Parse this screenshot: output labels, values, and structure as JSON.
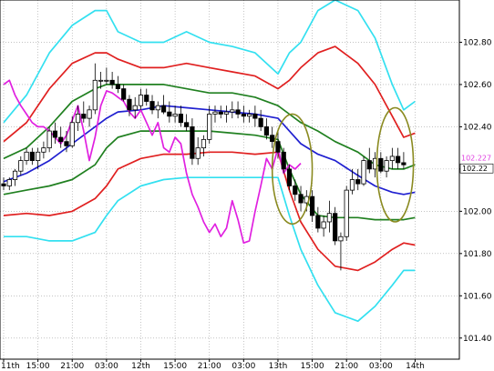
{
  "chart_data": {
    "type": "line",
    "title": "",
    "xlabel": "",
    "ylabel": "",
    "ylim": [
      101.3,
      103.0
    ],
    "y_ticks": [
      "102.80",
      "102.60",
      "102.40",
      "102.20",
      "102.00",
      "101.80",
      "101.60",
      "101.40"
    ],
    "y_tick_values": [
      102.8,
      102.6,
      102.4,
      102.2,
      102.0,
      101.8,
      101.6,
      101.4
    ],
    "x_range": [
      0,
      92
    ],
    "x_ticks": [
      {
        "label": "11th",
        "x": 0
      },
      {
        "label": "15:00",
        "x": 6
      },
      {
        "label": "21:00",
        "x": 12
      },
      {
        "label": "03:00",
        "x": 18
      },
      {
        "label": "12th",
        "x": 24
      },
      {
        "label": "15:00",
        "x": 30
      },
      {
        "label": "21:00",
        "x": 36
      },
      {
        "label": "03:00",
        "x": 42
      },
      {
        "label": "13th",
        "x": 48
      },
      {
        "label": "15:00",
        "x": 54
      },
      {
        "label": "21:00",
        "x": 60
      },
      {
        "label": "03:00",
        "x": 66
      },
      {
        "label": "14th",
        "x": 72
      }
    ],
    "grid": true,
    "current_price_labels": [
      {
        "text": "102.227",
        "value": 102.227,
        "color": "#e040e0"
      },
      {
        "text": "102.22",
        "value": 102.22,
        "color": "#000000"
      }
    ],
    "colors": {
      "outer_band": "#33e0f0",
      "middle_band": "#e02020",
      "inner_band": "#208020",
      "moving_average": "#2020d0",
      "lagging_line": "#e020e0",
      "candle_up": "#ffffff",
      "candle_down": "#000000",
      "circle": "#8a8a20"
    },
    "series": [
      {
        "key": "outer_upper",
        "x": [
          0,
          4,
          8,
          12,
          16,
          18,
          20,
          24,
          28,
          32,
          36,
          40,
          44,
          48,
          50,
          52,
          55,
          58,
          62,
          65,
          68,
          70,
          72
        ],
        "values": [
          102.42,
          102.55,
          102.75,
          102.88,
          102.95,
          102.95,
          102.85,
          102.8,
          102.8,
          102.85,
          102.8,
          102.78,
          102.75,
          102.65,
          102.75,
          102.8,
          102.95,
          103.0,
          102.95,
          102.82,
          102.6,
          102.48,
          102.52
        ]
      },
      {
        "key": "middle_upper",
        "x": [
          0,
          4,
          8,
          12,
          16,
          18,
          20,
          24,
          28,
          32,
          36,
          40,
          44,
          48,
          50,
          52,
          55,
          58,
          62,
          65,
          68,
          70,
          72
        ],
        "values": [
          102.33,
          102.42,
          102.58,
          102.7,
          102.75,
          102.75,
          102.72,
          102.68,
          102.68,
          102.7,
          102.68,
          102.66,
          102.64,
          102.58,
          102.62,
          102.68,
          102.75,
          102.78,
          102.7,
          102.6,
          102.45,
          102.35,
          102.37
        ]
      },
      {
        "key": "inner_upper",
        "x": [
          0,
          4,
          8,
          12,
          16,
          18,
          20,
          24,
          28,
          32,
          36,
          40,
          44,
          48,
          50,
          52,
          55,
          58,
          62,
          65,
          68,
          70,
          72
        ],
        "values": [
          102.25,
          102.3,
          102.4,
          102.52,
          102.58,
          102.6,
          102.6,
          102.6,
          102.6,
          102.58,
          102.56,
          102.56,
          102.54,
          102.5,
          102.46,
          102.42,
          102.38,
          102.33,
          102.28,
          102.22,
          102.2,
          102.2,
          102.22
        ]
      },
      {
        "key": "moving_average",
        "x": [
          0,
          4,
          8,
          12,
          16,
          18,
          20,
          24,
          28,
          32,
          36,
          40,
          44,
          48,
          50,
          52,
          55,
          58,
          62,
          65,
          68,
          70,
          72
        ],
        "values": [
          102.14,
          102.18,
          102.24,
          102.32,
          102.4,
          102.44,
          102.47,
          102.48,
          102.5,
          102.49,
          102.48,
          102.47,
          102.46,
          102.44,
          102.38,
          102.32,
          102.27,
          102.24,
          102.17,
          102.12,
          102.09,
          102.08,
          102.09
        ]
      },
      {
        "key": "inner_lower",
        "x": [
          0,
          4,
          8,
          12,
          16,
          18,
          20,
          24,
          28,
          32,
          36,
          40,
          44,
          48,
          50,
          52,
          55,
          58,
          62,
          65,
          68,
          70,
          72
        ],
        "values": [
          102.08,
          102.1,
          102.12,
          102.15,
          102.22,
          102.3,
          102.35,
          102.38,
          102.38,
          102.38,
          102.38,
          102.37,
          102.36,
          102.34,
          102.2,
          102.08,
          101.98,
          101.97,
          101.97,
          101.96,
          101.96,
          101.96,
          101.97
        ]
      },
      {
        "key": "middle_lower",
        "x": [
          0,
          4,
          8,
          12,
          16,
          18,
          20,
          24,
          28,
          32,
          36,
          40,
          44,
          48,
          50,
          52,
          55,
          58,
          62,
          65,
          68,
          70,
          72
        ],
        "values": [
          101.98,
          101.99,
          101.98,
          102.0,
          102.06,
          102.12,
          102.2,
          102.25,
          102.27,
          102.27,
          102.28,
          102.28,
          102.27,
          102.28,
          102.1,
          101.95,
          101.82,
          101.74,
          101.72,
          101.76,
          101.82,
          101.85,
          101.84
        ]
      },
      {
        "key": "outer_lower",
        "x": [
          0,
          4,
          8,
          12,
          16,
          18,
          20,
          24,
          28,
          32,
          36,
          40,
          44,
          48,
          50,
          52,
          55,
          58,
          62,
          65,
          68,
          70,
          72
        ],
        "values": [
          101.88,
          101.88,
          101.86,
          101.86,
          101.9,
          101.98,
          102.05,
          102.12,
          102.15,
          102.16,
          102.16,
          102.16,
          102.16,
          102.16,
          101.98,
          101.82,
          101.65,
          101.52,
          101.48,
          101.55,
          101.65,
          101.72,
          101.72
        ]
      },
      {
        "key": "lagging_line",
        "x": [
          0,
          1,
          2,
          3,
          4,
          5,
          6,
          7,
          8,
          9,
          10,
          11,
          12,
          13,
          14,
          15,
          16,
          17,
          18,
          19,
          20,
          21,
          22,
          23,
          24,
          25,
          26,
          27,
          28,
          29,
          30,
          31,
          32,
          33,
          34,
          35,
          36,
          37,
          38,
          39,
          40,
          41,
          42,
          43,
          44,
          45,
          46,
          47,
          48,
          49,
          50,
          51,
          52
        ],
        "values": [
          102.6,
          102.62,
          102.55,
          102.5,
          102.46,
          102.42,
          102.4,
          102.4,
          102.38,
          102.35,
          102.32,
          102.36,
          102.43,
          102.5,
          102.38,
          102.24,
          102.35,
          102.5,
          102.57,
          102.56,
          102.54,
          102.52,
          102.47,
          102.44,
          102.48,
          102.42,
          102.36,
          102.42,
          102.3,
          102.28,
          102.35,
          102.32,
          102.18,
          102.08,
          102.02,
          101.95,
          101.9,
          101.94,
          101.88,
          101.92,
          102.05,
          101.96,
          101.85,
          101.86,
          102.0,
          102.12,
          102.25,
          102.2,
          102.3,
          102.18,
          102.22,
          102.2,
          102.227
        ]
      }
    ],
    "candles": [
      [
        102.13,
        102.16,
        102.1,
        102.12
      ],
      [
        102.12,
        102.16,
        102.1,
        102.15
      ],
      [
        102.15,
        102.2,
        102.12,
        102.19
      ],
      [
        102.19,
        102.26,
        102.17,
        102.24
      ],
      [
        102.24,
        102.3,
        102.22,
        102.28
      ],
      [
        102.28,
        102.3,
        102.22,
        102.24
      ],
      [
        102.24,
        102.3,
        102.2,
        102.28
      ],
      [
        102.28,
        102.33,
        102.25,
        102.3
      ],
      [
        102.3,
        102.4,
        102.28,
        102.38
      ],
      [
        102.38,
        102.42,
        102.32,
        102.35
      ],
      [
        102.35,
        102.4,
        102.3,
        102.33
      ],
      [
        102.33,
        102.38,
        102.28,
        102.31
      ],
      [
        102.31,
        102.45,
        102.3,
        102.42
      ],
      [
        102.42,
        102.5,
        102.38,
        102.46
      ],
      [
        102.46,
        102.52,
        102.42,
        102.44
      ],
      [
        102.44,
        102.5,
        102.4,
        102.48
      ],
      [
        102.48,
        102.7,
        102.46,
        102.62
      ],
      [
        102.62,
        102.66,
        102.58,
        102.62
      ],
      [
        102.62,
        102.68,
        102.6,
        102.62
      ],
      [
        102.62,
        102.66,
        102.58,
        102.6
      ],
      [
        102.6,
        102.64,
        102.56,
        102.58
      ],
      [
        102.58,
        102.6,
        102.52,
        102.53
      ],
      [
        102.53,
        102.55,
        102.45,
        102.48
      ],
      [
        102.48,
        102.54,
        102.44,
        102.5
      ],
      [
        102.5,
        102.58,
        102.48,
        102.55
      ],
      [
        102.55,
        102.58,
        102.5,
        102.52
      ],
      [
        102.52,
        102.55,
        102.46,
        102.48
      ],
      [
        102.48,
        102.52,
        102.44,
        102.5
      ],
      [
        102.5,
        102.55,
        102.46,
        102.47
      ],
      [
        102.47,
        102.52,
        102.42,
        102.45
      ],
      [
        102.45,
        102.5,
        102.42,
        102.46
      ],
      [
        102.46,
        102.5,
        102.4,
        102.42
      ],
      [
        102.42,
        102.46,
        102.38,
        102.4
      ],
      [
        102.4,
        102.44,
        102.22,
        102.25
      ],
      [
        102.25,
        102.35,
        102.22,
        102.3
      ],
      [
        102.3,
        102.36,
        102.26,
        102.34
      ],
      [
        102.34,
        102.5,
        102.32,
        102.46
      ],
      [
        102.46,
        102.5,
        102.42,
        102.47
      ],
      [
        102.47,
        102.5,
        102.44,
        102.46
      ],
      [
        102.46,
        102.5,
        102.42,
        102.47
      ],
      [
        102.47,
        102.52,
        102.44,
        102.48
      ],
      [
        102.48,
        102.52,
        102.44,
        102.46
      ],
      [
        102.46,
        102.5,
        102.42,
        102.45
      ],
      [
        102.45,
        102.48,
        102.42,
        102.46
      ],
      [
        102.46,
        102.5,
        102.4,
        102.44
      ],
      [
        102.44,
        102.48,
        102.38,
        102.4
      ],
      [
        102.4,
        102.44,
        102.34,
        102.36
      ],
      [
        102.36,
        102.4,
        102.3,
        102.33
      ],
      [
        102.33,
        102.38,
        102.25,
        102.28
      ],
      [
        102.28,
        102.3,
        102.18,
        102.2
      ],
      [
        102.2,
        102.22,
        102.1,
        102.12
      ],
      [
        102.12,
        102.15,
        102.05,
        102.08
      ],
      [
        102.08,
        102.12,
        102.0,
        102.04
      ],
      [
        102.04,
        102.1,
        102.0,
        102.07
      ],
      [
        102.07,
        102.1,
        101.95,
        101.98
      ],
      [
        101.98,
        102.02,
        101.9,
        101.92
      ],
      [
        101.92,
        101.98,
        101.88,
        101.95
      ],
      [
        101.95,
        102.05,
        101.9,
        101.99
      ],
      [
        101.99,
        102.02,
        101.84,
        101.86
      ],
      [
        101.86,
        101.9,
        101.72,
        101.88
      ],
      [
        101.88,
        102.12,
        101.86,
        102.1
      ],
      [
        102.1,
        102.2,
        102.08,
        102.15
      ],
      [
        102.15,
        102.2,
        102.1,
        102.13
      ],
      [
        102.13,
        102.26,
        102.12,
        102.24
      ],
      [
        102.24,
        102.3,
        102.18,
        102.2
      ],
      [
        102.2,
        102.28,
        102.16,
        102.25
      ],
      [
        102.25,
        102.28,
        102.18,
        102.19
      ],
      [
        102.19,
        102.26,
        102.16,
        102.24
      ],
      [
        102.24,
        102.3,
        102.2,
        102.26
      ],
      [
        102.26,
        102.3,
        102.2,
        102.23
      ],
      [
        102.23,
        102.28,
        102.2,
        102.22
      ]
    ],
    "annotations": [
      {
        "type": "ellipse",
        "cx": 50.5,
        "cy": 102.2,
        "rx": 3.5,
        "ry": 0.26
      },
      {
        "type": "ellipse",
        "cx": 68.5,
        "cy": 102.22,
        "rx": 3.2,
        "ry": 0.27
      }
    ]
  }
}
